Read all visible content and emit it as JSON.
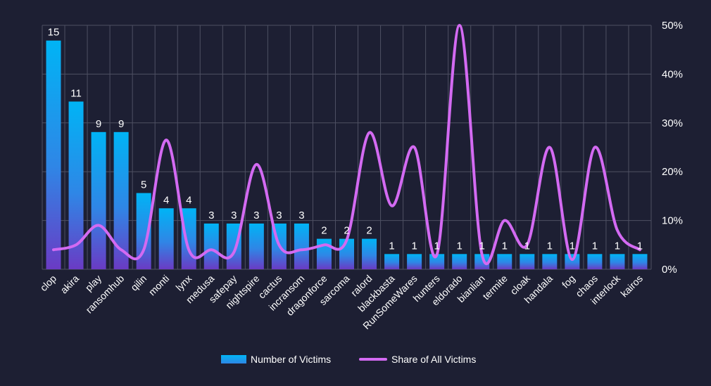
{
  "chart_data": {
    "type": "bar",
    "categories": [
      "clop",
      "akira",
      "play",
      "ransomhub",
      "qilin",
      "monti",
      "lynx",
      "medusa",
      "safepay",
      "nightspire",
      "cactus",
      "incransom",
      "dragonforce",
      "sarcoma",
      "ralord",
      "blackbasta",
      "RunSomeWares",
      "hunters",
      "eldorado",
      "bianlian",
      "termite",
      "cloak",
      "handala",
      "fog",
      "chaos",
      "interlock",
      "kairos"
    ],
    "series": [
      {
        "name": "Number of Victims",
        "type": "bar",
        "axis": "left",
        "values": [
          15,
          11,
          9,
          9,
          5,
          4,
          4,
          3,
          3,
          3,
          3,
          3,
          2,
          2,
          2,
          1,
          1,
          1,
          1,
          1,
          1,
          1,
          1,
          1,
          1,
          1,
          1
        ],
        "labels": [
          "15",
          "11",
          "9",
          "9",
          "5",
          "4",
          "4",
          "3",
          "3",
          "3",
          "3",
          "3",
          "2",
          "2",
          "2",
          "1",
          "1",
          "1",
          "1",
          "1",
          "1",
          "1",
          "1",
          "1",
          "1",
          "1",
          "1"
        ],
        "color_top": "#00b4f5",
        "color_bottom": "#6a3bc4"
      },
      {
        "name": "Share of All Victims",
        "type": "line",
        "axis": "right",
        "values": [
          4,
          5,
          9,
          4,
          4,
          26.5,
          4,
          4,
          3.5,
          21.5,
          5,
          4,
          5,
          6,
          28,
          13,
          25,
          3,
          50,
          3,
          10,
          5,
          25,
          2,
          25,
          8,
          4
        ],
        "color": "#d36af2"
      }
    ],
    "y_left": {
      "min": 0,
      "max": 16
    },
    "y_right": {
      "min": 0,
      "max": 50,
      "ticks": [
        "0%",
        "10%",
        "20%",
        "30%",
        "40%",
        "50%"
      ]
    },
    "grid": true,
    "legend": "bottom-center",
    "background": "#1d1f33",
    "grid_color": "#4e5063"
  }
}
